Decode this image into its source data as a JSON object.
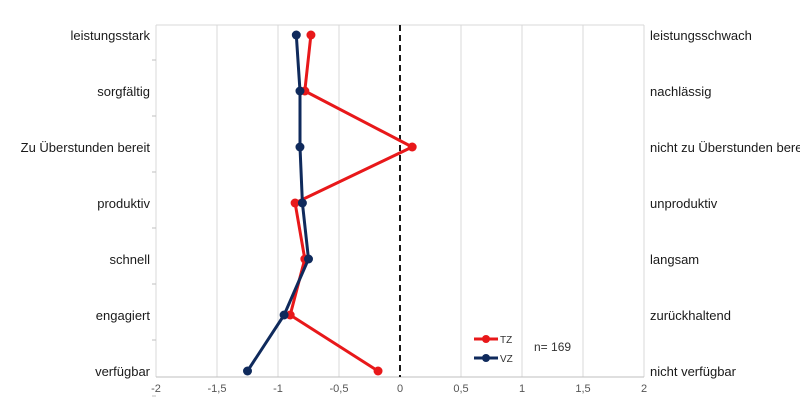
{
  "chart_data": {
    "type": "line",
    "orientation": "horizontal-profile",
    "left_labels": [
      "leistungsstark",
      "sorgfältig",
      "Zu Überstunden bereit",
      "produktiv",
      "schnell",
      "engagiert",
      "verfügbar"
    ],
    "right_labels": [
      "leistungsschwach",
      "nachlässig",
      "nicht zu Überstunden bereit",
      "unproduktiv",
      "langsam",
      "zurückhaltend",
      "nicht verfügbar"
    ],
    "xlim": [
      -2,
      2
    ],
    "x_ticks": [
      "-2",
      "-1,5",
      "-1",
      "-0,5",
      "0",
      "0,5",
      "1",
      "1,5",
      "2"
    ],
    "x_tick_values": [
      -2,
      -1.5,
      -1,
      -0.5,
      0,
      0.5,
      1,
      1.5,
      2
    ],
    "reference_line": 0,
    "grid": true,
    "legend_position": "bottom-right",
    "series": [
      {
        "name": "TZ",
        "color": "#e8181a",
        "values": [
          -0.73,
          -0.78,
          0.1,
          -0.86,
          -0.78,
          -0.9,
          -0.18
        ]
      },
      {
        "name": "VZ",
        "color": "#0f2a5c",
        "values": [
          -0.85,
          -0.82,
          -0.82,
          -0.8,
          -0.75,
          -0.95,
          -1.25
        ]
      }
    ],
    "annotation": "n= 169"
  }
}
